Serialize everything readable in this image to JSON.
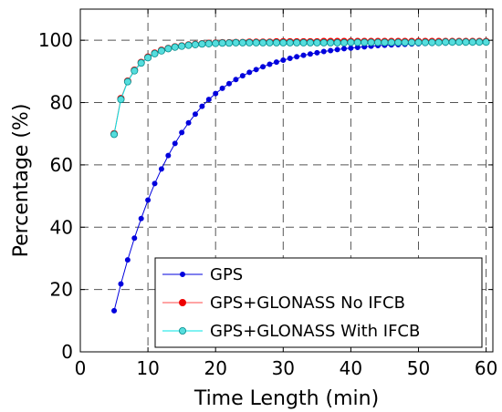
{
  "chart_data": {
    "type": "line",
    "title": "",
    "xlabel": "Time Length (min)",
    "ylabel": "Percentage (%)",
    "xlim": [
      0,
      61
    ],
    "ylim": [
      0,
      100
    ],
    "xticks": [
      0,
      10,
      20,
      30,
      40,
      50,
      60
    ],
    "yticks": [
      0,
      20,
      40,
      60,
      80,
      100
    ],
    "grid": true,
    "legend_position": "bottom-right",
    "series": [
      {
        "name": "GPS",
        "color": "#0000dd",
        "marker_face": "#0000dd",
        "marker_edge": "#0000dd",
        "x": [
          5,
          6,
          7,
          8,
          9,
          10,
          11,
          12,
          13,
          14,
          15,
          16,
          17,
          18,
          19,
          20,
          21,
          22,
          23,
          24,
          25,
          26,
          27,
          28,
          29,
          30,
          31,
          32,
          33,
          34,
          35,
          36,
          37,
          38,
          39,
          40,
          41,
          42,
          43,
          44,
          45,
          46,
          47,
          48,
          49,
          50,
          51,
          52,
          53,
          54,
          55,
          56,
          57,
          58,
          59,
          60
        ],
        "values": [
          13.2,
          21.8,
          29.5,
          36.5,
          42.8,
          48.7,
          54.0,
          58.7,
          63.0,
          66.9,
          70.4,
          73.5,
          76.3,
          78.8,
          81.0,
          82.9,
          84.6,
          86.1,
          87.4,
          88.6,
          89.7,
          90.6,
          91.5,
          92.3,
          93.0,
          93.6,
          94.2,
          94.7,
          95.2,
          95.6,
          96.0,
          96.4,
          96.7,
          97.0,
          97.3,
          97.5,
          97.7,
          97.9,
          98.1,
          98.3,
          98.4,
          98.5,
          98.6,
          98.7,
          98.8,
          98.9,
          99.0,
          99.0,
          99.1,
          99.1,
          99.2,
          99.2,
          99.2,
          99.3,
          99.3,
          99.3
        ]
      },
      {
        "name": "GPS+GLONASS No IFCB",
        "color": "#ff4a4a",
        "marker_face": "#ee0000",
        "marker_edge": "#ee0000",
        "x": [
          5,
          6,
          7,
          8,
          9,
          10,
          11,
          12,
          13,
          14,
          15,
          16,
          17,
          18,
          19,
          20,
          21,
          22,
          23,
          24,
          25,
          26,
          27,
          28,
          29,
          30,
          31,
          32,
          33,
          34,
          35,
          36,
          37,
          38,
          39,
          40,
          41,
          42,
          43,
          44,
          45,
          46,
          47,
          48,
          49,
          50,
          51,
          52,
          53,
          54,
          55,
          56,
          57,
          58,
          59,
          60
        ],
        "values": [
          70.0,
          81.3,
          86.9,
          90.4,
          92.9,
          94.6,
          95.9,
          96.8,
          97.4,
          97.9,
          98.2,
          98.5,
          98.7,
          98.9,
          99.0,
          99.1,
          99.2,
          99.2,
          99.3,
          99.3,
          99.4,
          99.4,
          99.4,
          99.4,
          99.5,
          99.5,
          99.5,
          99.5,
          99.5,
          99.5,
          99.5,
          99.6,
          99.6,
          99.6,
          99.6,
          99.6,
          99.6,
          99.6,
          99.6,
          99.6,
          99.6,
          99.6,
          99.6,
          99.6,
          99.6,
          99.6,
          99.6,
          99.6,
          99.6,
          99.6,
          99.6,
          99.6,
          99.6,
          99.6,
          99.6,
          99.6
        ]
      },
      {
        "name": "GPS+GLONASS With IFCB",
        "color": "#00e5e5",
        "marker_face": "#55dddd",
        "marker_edge": "#008b8b",
        "x": [
          5,
          6,
          7,
          8,
          9,
          10,
          11,
          12,
          13,
          14,
          15,
          16,
          17,
          18,
          19,
          20,
          21,
          22,
          23,
          24,
          25,
          26,
          27,
          28,
          29,
          30,
          31,
          32,
          33,
          34,
          35,
          36,
          37,
          38,
          39,
          40,
          41,
          42,
          43,
          44,
          45,
          46,
          47,
          48,
          49,
          50,
          51,
          52,
          53,
          54,
          55,
          56,
          57,
          58,
          59,
          60
        ],
        "values": [
          69.8,
          81.0,
          86.7,
          90.2,
          92.7,
          94.4,
          95.7,
          96.6,
          97.3,
          97.8,
          98.1,
          98.4,
          98.6,
          98.8,
          98.9,
          99.0,
          99.1,
          99.1,
          99.2,
          99.2,
          99.2,
          99.2,
          99.2,
          99.2,
          99.2,
          99.2,
          99.2,
          99.2,
          99.2,
          99.2,
          99.2,
          99.2,
          99.2,
          99.2,
          99.2,
          99.3,
          99.3,
          99.3,
          99.3,
          99.3,
          99.3,
          99.3,
          99.3,
          99.3,
          99.3,
          99.3,
          99.3,
          99.3,
          99.3,
          99.4,
          99.4,
          99.4,
          99.4,
          99.4,
          99.4,
          99.4
        ]
      }
    ]
  }
}
